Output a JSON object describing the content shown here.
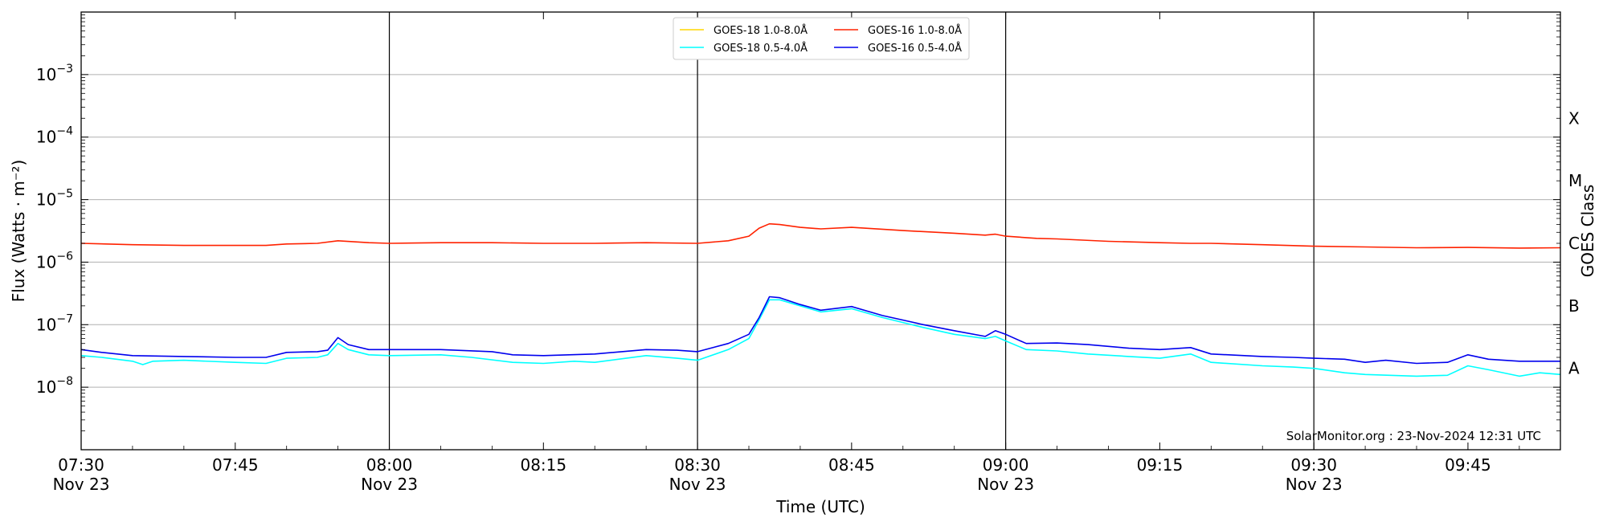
{
  "chart_data": {
    "type": "line",
    "xlabel": "Time (UTC)",
    "ylabel": "Flux (Watts · m⁻²)",
    "y2label": "GOES Class",
    "yscale": "log",
    "ylim": [
      1e-09,
      0.01
    ],
    "xlim": [
      "2024-11-23 07:30",
      "2024-11-23 09:54"
    ],
    "x_ticks": [
      {
        "time": "07:30",
        "date": "Nov 23"
      },
      {
        "time": "07:45",
        "date": ""
      },
      {
        "time": "08:00",
        "date": "Nov 23"
      },
      {
        "time": "08:15",
        "date": ""
      },
      {
        "time": "08:30",
        "date": "Nov 23"
      },
      {
        "time": "08:45",
        "date": ""
      },
      {
        "time": "09:00",
        "date": "Nov 23"
      },
      {
        "time": "09:15",
        "date": ""
      },
      {
        "time": "09:30",
        "date": "Nov 23"
      },
      {
        "time": "09:45",
        "date": ""
      }
    ],
    "day_marker_times": [
      "08:00",
      "08:30",
      "09:00",
      "09:30"
    ],
    "y_ticks": [
      {
        "value": 1e-08,
        "base": "10",
        "exp": "−8"
      },
      {
        "value": 1e-07,
        "base": "10",
        "exp": "−7"
      },
      {
        "value": 1e-06,
        "base": "10",
        "exp": "−6"
      },
      {
        "value": 1e-05,
        "base": "10",
        "exp": "−5"
      },
      {
        "value": 0.0001,
        "base": "10",
        "exp": "−4"
      },
      {
        "value": 0.001,
        "base": "10",
        "exp": "−3"
      }
    ],
    "goes_classes": [
      {
        "label": "A",
        "value": 2e-08
      },
      {
        "label": "B",
        "value": 2e-07
      },
      {
        "label": "C",
        "value": 2e-06
      },
      {
        "label": "M",
        "value": 2e-05
      },
      {
        "label": "X",
        "value": 0.0002
      }
    ],
    "grid": "horizontal at decades",
    "legend_position": "top-center",
    "legend": [
      {
        "name": "GOES-18 1.0-8.0Å",
        "color": "#ffd700"
      },
      {
        "name": "GOES-18 0.5-4.0Å",
        "color": "#00ffff"
      },
      {
        "name": "GOES-16 1.0-8.0Å",
        "color": "#ff2200"
      },
      {
        "name": "GOES-16 0.5-4.0Å",
        "color": "#0000ee"
      }
    ],
    "series": [
      {
        "name": "GOES-16 1.0-8.0Å",
        "color": "#ff2200",
        "points": [
          [
            "07:30",
            2e-06
          ],
          [
            "07:35",
            1.9e-06
          ],
          [
            "07:40",
            1.85e-06
          ],
          [
            "07:45",
            1.85e-06
          ],
          [
            "07:48",
            1.85e-06
          ],
          [
            "07:50",
            1.95e-06
          ],
          [
            "07:53",
            2e-06
          ],
          [
            "07:55",
            2.2e-06
          ],
          [
            "07:58",
            2.05e-06
          ],
          [
            "08:00",
            2e-06
          ],
          [
            "08:05",
            2.05e-06
          ],
          [
            "08:10",
            2.05e-06
          ],
          [
            "08:15",
            2e-06
          ],
          [
            "08:20",
            2e-06
          ],
          [
            "08:25",
            2.05e-06
          ],
          [
            "08:30",
            2e-06
          ],
          [
            "08:33",
            2.2e-06
          ],
          [
            "08:35",
            2.6e-06
          ],
          [
            "08:36",
            3.5e-06
          ],
          [
            "08:37",
            4.1e-06
          ],
          [
            "08:38",
            4e-06
          ],
          [
            "08:40",
            3.6e-06
          ],
          [
            "08:42",
            3.4e-06
          ],
          [
            "08:45",
            3.6e-06
          ],
          [
            "08:50",
            3.2e-06
          ],
          [
            "08:55",
            2.9e-06
          ],
          [
            "08:58",
            2.7e-06
          ],
          [
            "08:59",
            2.8e-06
          ],
          [
            "09:00",
            2.6e-06
          ],
          [
            "09:03",
            2.4e-06
          ],
          [
            "09:05",
            2.35e-06
          ],
          [
            "09:10",
            2.15e-06
          ],
          [
            "09:15",
            2.05e-06
          ],
          [
            "09:18",
            2e-06
          ],
          [
            "09:20",
            2e-06
          ],
          [
            "09:25",
            1.9e-06
          ],
          [
            "09:30",
            1.8e-06
          ],
          [
            "09:35",
            1.75e-06
          ],
          [
            "09:40",
            1.7e-06
          ],
          [
            "09:45",
            1.72e-06
          ],
          [
            "09:50",
            1.68e-06
          ],
          [
            "09:54",
            1.7e-06
          ]
        ]
      },
      {
        "name": "GOES-18 0.5-4.0Å",
        "color": "#00ffff",
        "points": [
          [
            "07:30",
            3.2e-08
          ],
          [
            "07:32",
            3e-08
          ],
          [
            "07:35",
            2.6e-08
          ],
          [
            "07:36",
            2.3e-08
          ],
          [
            "07:37",
            2.6e-08
          ],
          [
            "07:40",
            2.7e-08
          ],
          [
            "07:45",
            2.5e-08
          ],
          [
            "07:48",
            2.4e-08
          ],
          [
            "07:50",
            2.9e-08
          ],
          [
            "07:53",
            3e-08
          ],
          [
            "07:54",
            3.3e-08
          ],
          [
            "07:55",
            5e-08
          ],
          [
            "07:56",
            4e-08
          ],
          [
            "07:58",
            3.3e-08
          ],
          [
            "08:00",
            3.2e-08
          ],
          [
            "08:05",
            3.3e-08
          ],
          [
            "08:08",
            3e-08
          ],
          [
            "08:12",
            2.5e-08
          ],
          [
            "08:15",
            2.4e-08
          ],
          [
            "08:18",
            2.6e-08
          ],
          [
            "08:20",
            2.5e-08
          ],
          [
            "08:25",
            3.2e-08
          ],
          [
            "08:28",
            2.9e-08
          ],
          [
            "08:30",
            2.7e-08
          ],
          [
            "08:33",
            4e-08
          ],
          [
            "08:35",
            6e-08
          ],
          [
            "08:36",
            1.2e-07
          ],
          [
            "08:37",
            2.5e-07
          ],
          [
            "08:38",
            2.5e-07
          ],
          [
            "08:40",
            2e-07
          ],
          [
            "08:42",
            1.6e-07
          ],
          [
            "08:45",
            1.8e-07
          ],
          [
            "08:48",
            1.3e-07
          ],
          [
            "08:52",
            9e-08
          ],
          [
            "08:55",
            7e-08
          ],
          [
            "08:58",
            6e-08
          ],
          [
            "08:59",
            6.5e-08
          ],
          [
            "09:00",
            5.5e-08
          ],
          [
            "09:02",
            4e-08
          ],
          [
            "09:05",
            3.8e-08
          ],
          [
            "09:08",
            3.4e-08
          ],
          [
            "09:12",
            3.1e-08
          ],
          [
            "09:15",
            2.9e-08
          ],
          [
            "09:18",
            3.4e-08
          ],
          [
            "09:20",
            2.5e-08
          ],
          [
            "09:25",
            2.2e-08
          ],
          [
            "09:28",
            2.1e-08
          ],
          [
            "09:30",
            2e-08
          ],
          [
            "09:33",
            1.7e-08
          ],
          [
            "09:35",
            1.6e-08
          ],
          [
            "09:40",
            1.5e-08
          ],
          [
            "09:43",
            1.55e-08
          ],
          [
            "09:45",
            2.2e-08
          ],
          [
            "09:47",
            1.9e-08
          ],
          [
            "09:50",
            1.5e-08
          ],
          [
            "09:52",
            1.7e-08
          ],
          [
            "09:54",
            1.6e-08
          ]
        ]
      },
      {
        "name": "GOES-16 0.5-4.0Å",
        "color": "#0000ee",
        "points": [
          [
            "07:30",
            4e-08
          ],
          [
            "07:32",
            3.6e-08
          ],
          [
            "07:35",
            3.2e-08
          ],
          [
            "07:40",
            3.1e-08
          ],
          [
            "07:45",
            3e-08
          ],
          [
            "07:48",
            3e-08
          ],
          [
            "07:50",
            3.6e-08
          ],
          [
            "07:53",
            3.7e-08
          ],
          [
            "07:54",
            3.9e-08
          ],
          [
            "07:55",
            6.2e-08
          ],
          [
            "07:56",
            4.8e-08
          ],
          [
            "07:58",
            4e-08
          ],
          [
            "08:00",
            4e-08
          ],
          [
            "08:05",
            4e-08
          ],
          [
            "08:10",
            3.7e-08
          ],
          [
            "08:12",
            3.3e-08
          ],
          [
            "08:15",
            3.2e-08
          ],
          [
            "08:20",
            3.4e-08
          ],
          [
            "08:25",
            4e-08
          ],
          [
            "08:28",
            3.9e-08
          ],
          [
            "08:30",
            3.7e-08
          ],
          [
            "08:33",
            5e-08
          ],
          [
            "08:35",
            7e-08
          ],
          [
            "08:36",
            1.3e-07
          ],
          [
            "08:37",
            2.8e-07
          ],
          [
            "08:38",
            2.7e-07
          ],
          [
            "08:40",
            2.1e-07
          ],
          [
            "08:42",
            1.7e-07
          ],
          [
            "08:45",
            1.95e-07
          ],
          [
            "08:48",
            1.4e-07
          ],
          [
            "08:52",
            1e-07
          ],
          [
            "08:55",
            8e-08
          ],
          [
            "08:58",
            6.5e-08
          ],
          [
            "08:59",
            8e-08
          ],
          [
            "09:00",
            7e-08
          ],
          [
            "09:02",
            5e-08
          ],
          [
            "09:05",
            5.1e-08
          ],
          [
            "09:08",
            4.8e-08
          ],
          [
            "09:12",
            4.2e-08
          ],
          [
            "09:15",
            4e-08
          ],
          [
            "09:18",
            4.3e-08
          ],
          [
            "09:20",
            3.4e-08
          ],
          [
            "09:25",
            3.1e-08
          ],
          [
            "09:28",
            3e-08
          ],
          [
            "09:30",
            2.9e-08
          ],
          [
            "09:33",
            2.8e-08
          ],
          [
            "09:35",
            2.5e-08
          ],
          [
            "09:37",
            2.7e-08
          ],
          [
            "09:40",
            2.4e-08
          ],
          [
            "09:43",
            2.5e-08
          ],
          [
            "09:45",
            3.3e-08
          ],
          [
            "09:47",
            2.8e-08
          ],
          [
            "09:50",
            2.6e-08
          ],
          [
            "09:54",
            2.6e-08
          ]
        ]
      }
    ],
    "annotation": "SolarMonitor.org : 23-Nov-2024 12:31 UTC"
  }
}
